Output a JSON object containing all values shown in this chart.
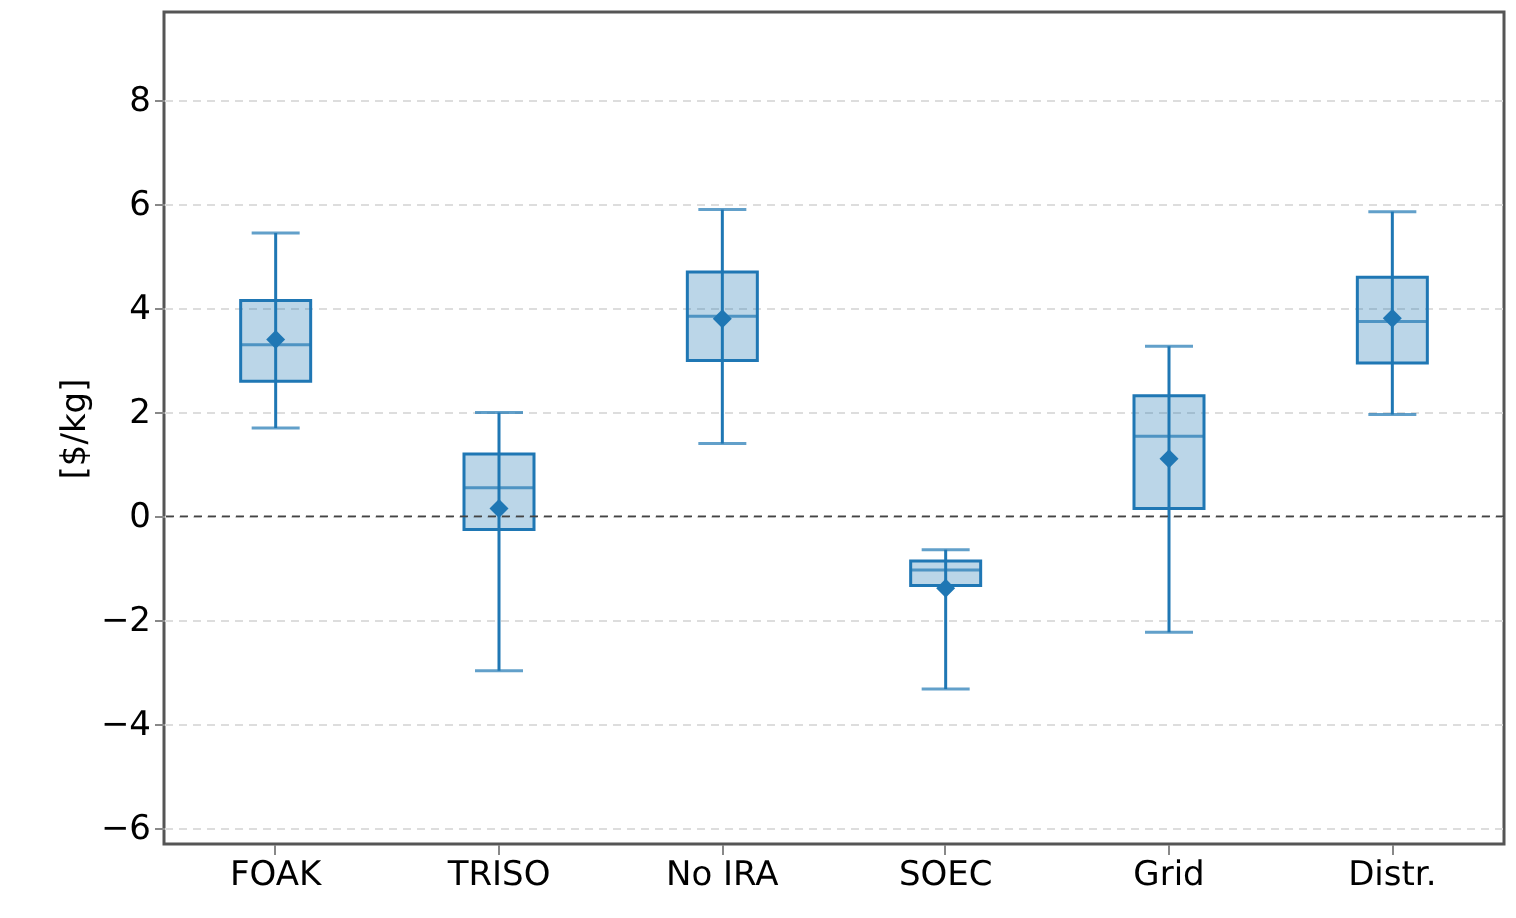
{
  "chart_data": {
    "type": "box",
    "ylabel": "[$/kg]",
    "categories": [
      "FOAK",
      "TRISO",
      "No IRA",
      "SOEC",
      "Grid",
      "Distr."
    ],
    "series": [
      {
        "color": "#1f77b4",
        "boxes": [
          {
            "low": 1.7,
            "q1": 2.6,
            "median": 3.3,
            "q3": 4.15,
            "high": 5.45,
            "mean": 3.4
          },
          {
            "low": -2.97,
            "q1": -0.25,
            "median": 0.55,
            "q3": 1.2,
            "high": 2.0,
            "mean": 0.15
          },
          {
            "low": 1.4,
            "q1": 3.0,
            "median": 3.85,
            "q3": 4.7,
            "high": 5.9,
            "mean": 3.8
          },
          {
            "low": -3.32,
            "q1": -1.33,
            "median": -1.03,
            "q3": -0.86,
            "high": -0.64,
            "mean": -1.38
          },
          {
            "low": -2.23,
            "q1": 0.15,
            "median": 1.54,
            "q3": 2.32,
            "high": 3.27,
            "mean": 1.11
          },
          {
            "low": 1.96,
            "q1": 2.95,
            "median": 3.75,
            "q3": 4.6,
            "high": 5.86,
            "mean": 3.81
          }
        ]
      }
    ],
    "ylim": [
      -6.3,
      9.7
    ],
    "yticks": [
      {
        "value": -6,
        "label": "−6"
      },
      {
        "value": -4,
        "label": "−4"
      },
      {
        "value": -2,
        "label": "−2"
      },
      0,
      2,
      4,
      6,
      8
    ],
    "grid": "y",
    "marker": "diamond",
    "ref_lines": [
      {
        "axis": "y",
        "value": 0,
        "color": "#444444",
        "line_style": "dashed"
      }
    ]
  }
}
